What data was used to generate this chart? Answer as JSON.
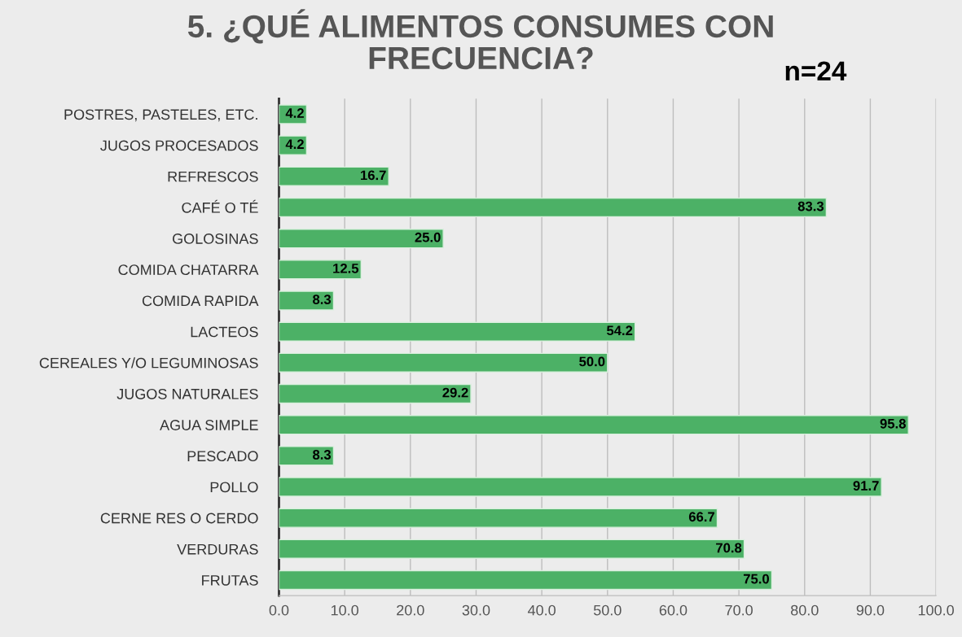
{
  "chart_data": {
    "type": "bar",
    "orientation": "horizontal",
    "title": "5. ¿QUÉ ALIMENTOS CONSUMES CON\nFRECUENCIA?",
    "annotations": [
      "n=24"
    ],
    "categories": [
      "POSTRES, PASTELES, ETC.",
      "JUGOS PROCESADOS",
      "REFRESCOS",
      "CAFÉ O TÉ",
      "GOLOSINAS",
      "COMIDA CHATARRA",
      "COMIDA RAPIDA",
      "LACTEOS",
      "CEREALES Y/O LEGUMINOSAS",
      "JUGOS NATURALES",
      "AGUA SIMPLE",
      "PESCADO",
      "POLLO",
      "CERNE RES O CERDO",
      "VERDURAS",
      "FRUTAS"
    ],
    "values": [
      4.2,
      4.2,
      16.7,
      83.3,
      25.0,
      12.5,
      8.3,
      54.2,
      50.0,
      29.2,
      95.8,
      8.3,
      91.7,
      66.7,
      70.8,
      75.0
    ],
    "value_labels": [
      "4.2",
      "4.2",
      "16.7",
      "83.3",
      "25.0",
      "12.5",
      "8.3",
      "54.2",
      "50.0",
      "29.2",
      "95.8",
      "8.3",
      "91.7",
      "66.7",
      "70.8",
      "75.0"
    ],
    "color": "#4cb166",
    "xlim": [
      0,
      100
    ],
    "xticks": [
      {
        "value": 0,
        "label": "0.0"
      },
      {
        "value": 10,
        "label": "10.0"
      },
      {
        "value": 20,
        "label": "20.0"
      },
      {
        "value": 30,
        "label": "30.0"
      },
      {
        "value": 40,
        "label": "40.0"
      },
      {
        "value": 50,
        "label": "50.0"
      },
      {
        "value": 60,
        "label": "60.0"
      },
      {
        "value": 70,
        "label": "70.0"
      },
      {
        "value": 80,
        "label": "80.0"
      },
      {
        "value": 90,
        "label": "90.0"
      },
      {
        "value": 100,
        "label": "100.0"
      }
    ],
    "grid": "x",
    "legend": false
  }
}
